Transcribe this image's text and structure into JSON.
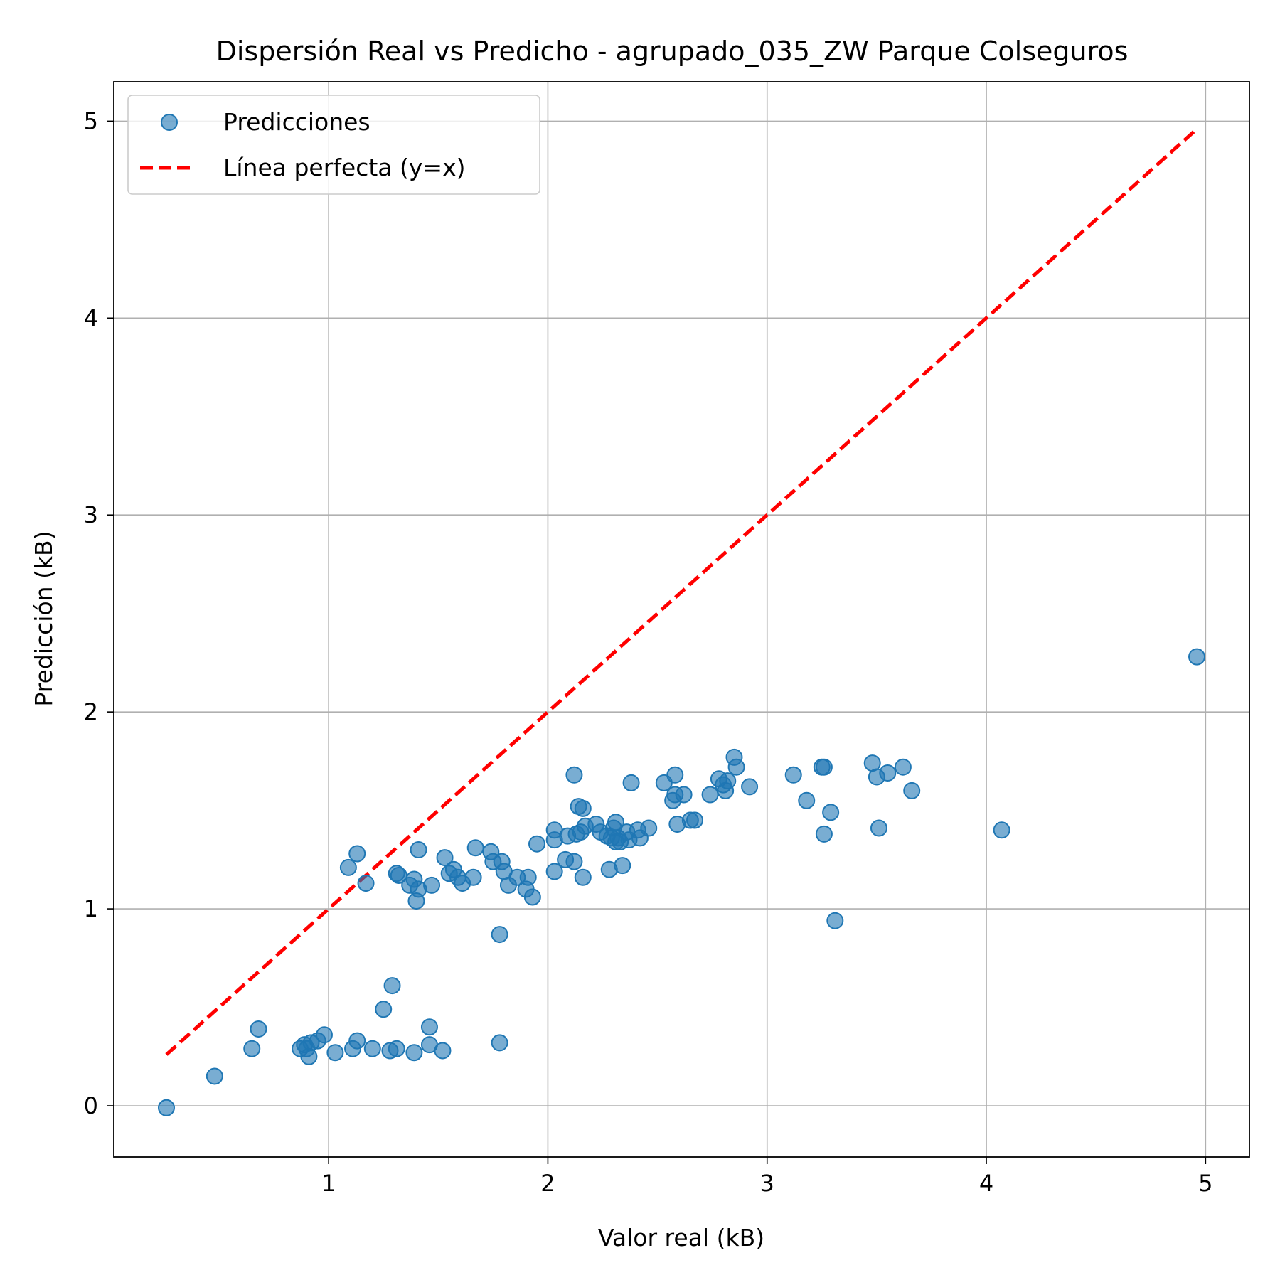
{
  "chart_data": {
    "type": "scatter",
    "title": "Dispersión Real vs Predicho - agrupado_035_ZW Parque Colseguros",
    "xlabel": "Valor real (kB)",
    "ylabel": "Predicción (kB)",
    "xlim": [
      0.02,
      5.2
    ],
    "ylim": [
      -0.26,
      5.2
    ],
    "xticks": [
      1,
      2,
      3,
      4,
      5
    ],
    "yticks": [
      0,
      1,
      2,
      3,
      4,
      5
    ],
    "grid": true,
    "legend_position": "top-left",
    "legend": [
      {
        "label": "Predicciones",
        "kind": "marker"
      },
      {
        "label": "Línea perfecta (y=x)",
        "kind": "dashed-line"
      }
    ],
    "series": [
      {
        "name": "Predicciones",
        "kind": "scatter",
        "color": "#1f77b4",
        "points": [
          [
            0.26,
            -0.01
          ],
          [
            0.48,
            0.15
          ],
          [
            0.65,
            0.29
          ],
          [
            0.68,
            0.39
          ],
          [
            0.87,
            0.29
          ],
          [
            0.89,
            0.31
          ],
          [
            0.9,
            0.29
          ],
          [
            0.91,
            0.25
          ],
          [
            0.92,
            0.32
          ],
          [
            0.95,
            0.33
          ],
          [
            0.98,
            0.36
          ],
          [
            1.03,
            0.27
          ],
          [
            1.11,
            0.29
          ],
          [
            1.13,
            0.33
          ],
          [
            1.2,
            0.29
          ],
          [
            1.25,
            0.49
          ],
          [
            1.28,
            0.28
          ],
          [
            1.29,
            0.61
          ],
          [
            1.31,
            0.29
          ],
          [
            1.39,
            0.27
          ],
          [
            1.46,
            0.4
          ],
          [
            1.46,
            0.31
          ],
          [
            1.52,
            0.28
          ],
          [
            1.78,
            0.32
          ],
          [
            1.78,
            0.87
          ],
          [
            1.09,
            1.21
          ],
          [
            1.13,
            1.28
          ],
          [
            1.17,
            1.13
          ],
          [
            1.31,
            1.18
          ],
          [
            1.32,
            1.17
          ],
          [
            1.37,
            1.12
          ],
          [
            1.39,
            1.15
          ],
          [
            1.4,
            1.04
          ],
          [
            1.41,
            1.1
          ],
          [
            1.41,
            1.3
          ],
          [
            1.47,
            1.12
          ],
          [
            1.53,
            1.26
          ],
          [
            1.55,
            1.18
          ],
          [
            1.57,
            1.2
          ],
          [
            1.59,
            1.16
          ],
          [
            1.61,
            1.13
          ],
          [
            1.66,
            1.16
          ],
          [
            1.67,
            1.31
          ],
          [
            1.74,
            1.29
          ],
          [
            1.75,
            1.24
          ],
          [
            1.79,
            1.24
          ],
          [
            1.8,
            1.19
          ],
          [
            1.82,
            1.12
          ],
          [
            1.86,
            1.16
          ],
          [
            1.9,
            1.1
          ],
          [
            1.91,
            1.16
          ],
          [
            1.93,
            1.06
          ],
          [
            1.95,
            1.33
          ],
          [
            2.03,
            1.19
          ],
          [
            2.03,
            1.35
          ],
          [
            2.03,
            1.4
          ],
          [
            2.08,
            1.25
          ],
          [
            2.09,
            1.37
          ],
          [
            2.12,
            1.24
          ],
          [
            2.12,
            1.68
          ],
          [
            2.13,
            1.38
          ],
          [
            2.14,
            1.52
          ],
          [
            2.15,
            1.39
          ],
          [
            2.16,
            1.16
          ],
          [
            2.16,
            1.51
          ],
          [
            2.17,
            1.42
          ],
          [
            2.22,
            1.43
          ],
          [
            2.24,
            1.39
          ],
          [
            2.27,
            1.37
          ],
          [
            2.28,
            1.2
          ],
          [
            2.29,
            1.36
          ],
          [
            2.3,
            1.41
          ],
          [
            2.31,
            1.34
          ],
          [
            2.31,
            1.44
          ],
          [
            2.32,
            1.36
          ],
          [
            2.33,
            1.34
          ],
          [
            2.34,
            1.22
          ],
          [
            2.36,
            1.39
          ],
          [
            2.37,
            1.35
          ],
          [
            2.38,
            1.64
          ],
          [
            2.41,
            1.4
          ],
          [
            2.42,
            1.36
          ],
          [
            2.46,
            1.41
          ],
          [
            2.53,
            1.64
          ],
          [
            2.57,
            1.55
          ],
          [
            2.58,
            1.68
          ],
          [
            2.58,
            1.58
          ],
          [
            2.59,
            1.43
          ],
          [
            2.62,
            1.58
          ],
          [
            2.65,
            1.45
          ],
          [
            2.67,
            1.45
          ],
          [
            2.74,
            1.58
          ],
          [
            2.78,
            1.66
          ],
          [
            2.8,
            1.63
          ],
          [
            2.81,
            1.6
          ],
          [
            2.82,
            1.65
          ],
          [
            2.85,
            1.77
          ],
          [
            2.86,
            1.72
          ],
          [
            2.92,
            1.62
          ],
          [
            3.12,
            1.68
          ],
          [
            3.18,
            1.55
          ],
          [
            3.25,
            1.72
          ],
          [
            3.26,
            1.72
          ],
          [
            3.26,
            1.38
          ],
          [
            3.29,
            1.49
          ],
          [
            3.31,
            0.94
          ],
          [
            3.48,
            1.74
          ],
          [
            3.5,
            1.67
          ],
          [
            3.51,
            1.41
          ],
          [
            3.55,
            1.69
          ],
          [
            3.62,
            1.72
          ],
          [
            3.66,
            1.6
          ],
          [
            4.07,
            1.4
          ],
          [
            4.96,
            2.28
          ]
        ]
      },
      {
        "name": "Línea perfecta (y=x)",
        "kind": "line",
        "color": "#ff0000",
        "dash": "dashed",
        "points": [
          [
            0.26,
            0.26
          ],
          [
            4.96,
            4.96
          ]
        ]
      }
    ]
  }
}
